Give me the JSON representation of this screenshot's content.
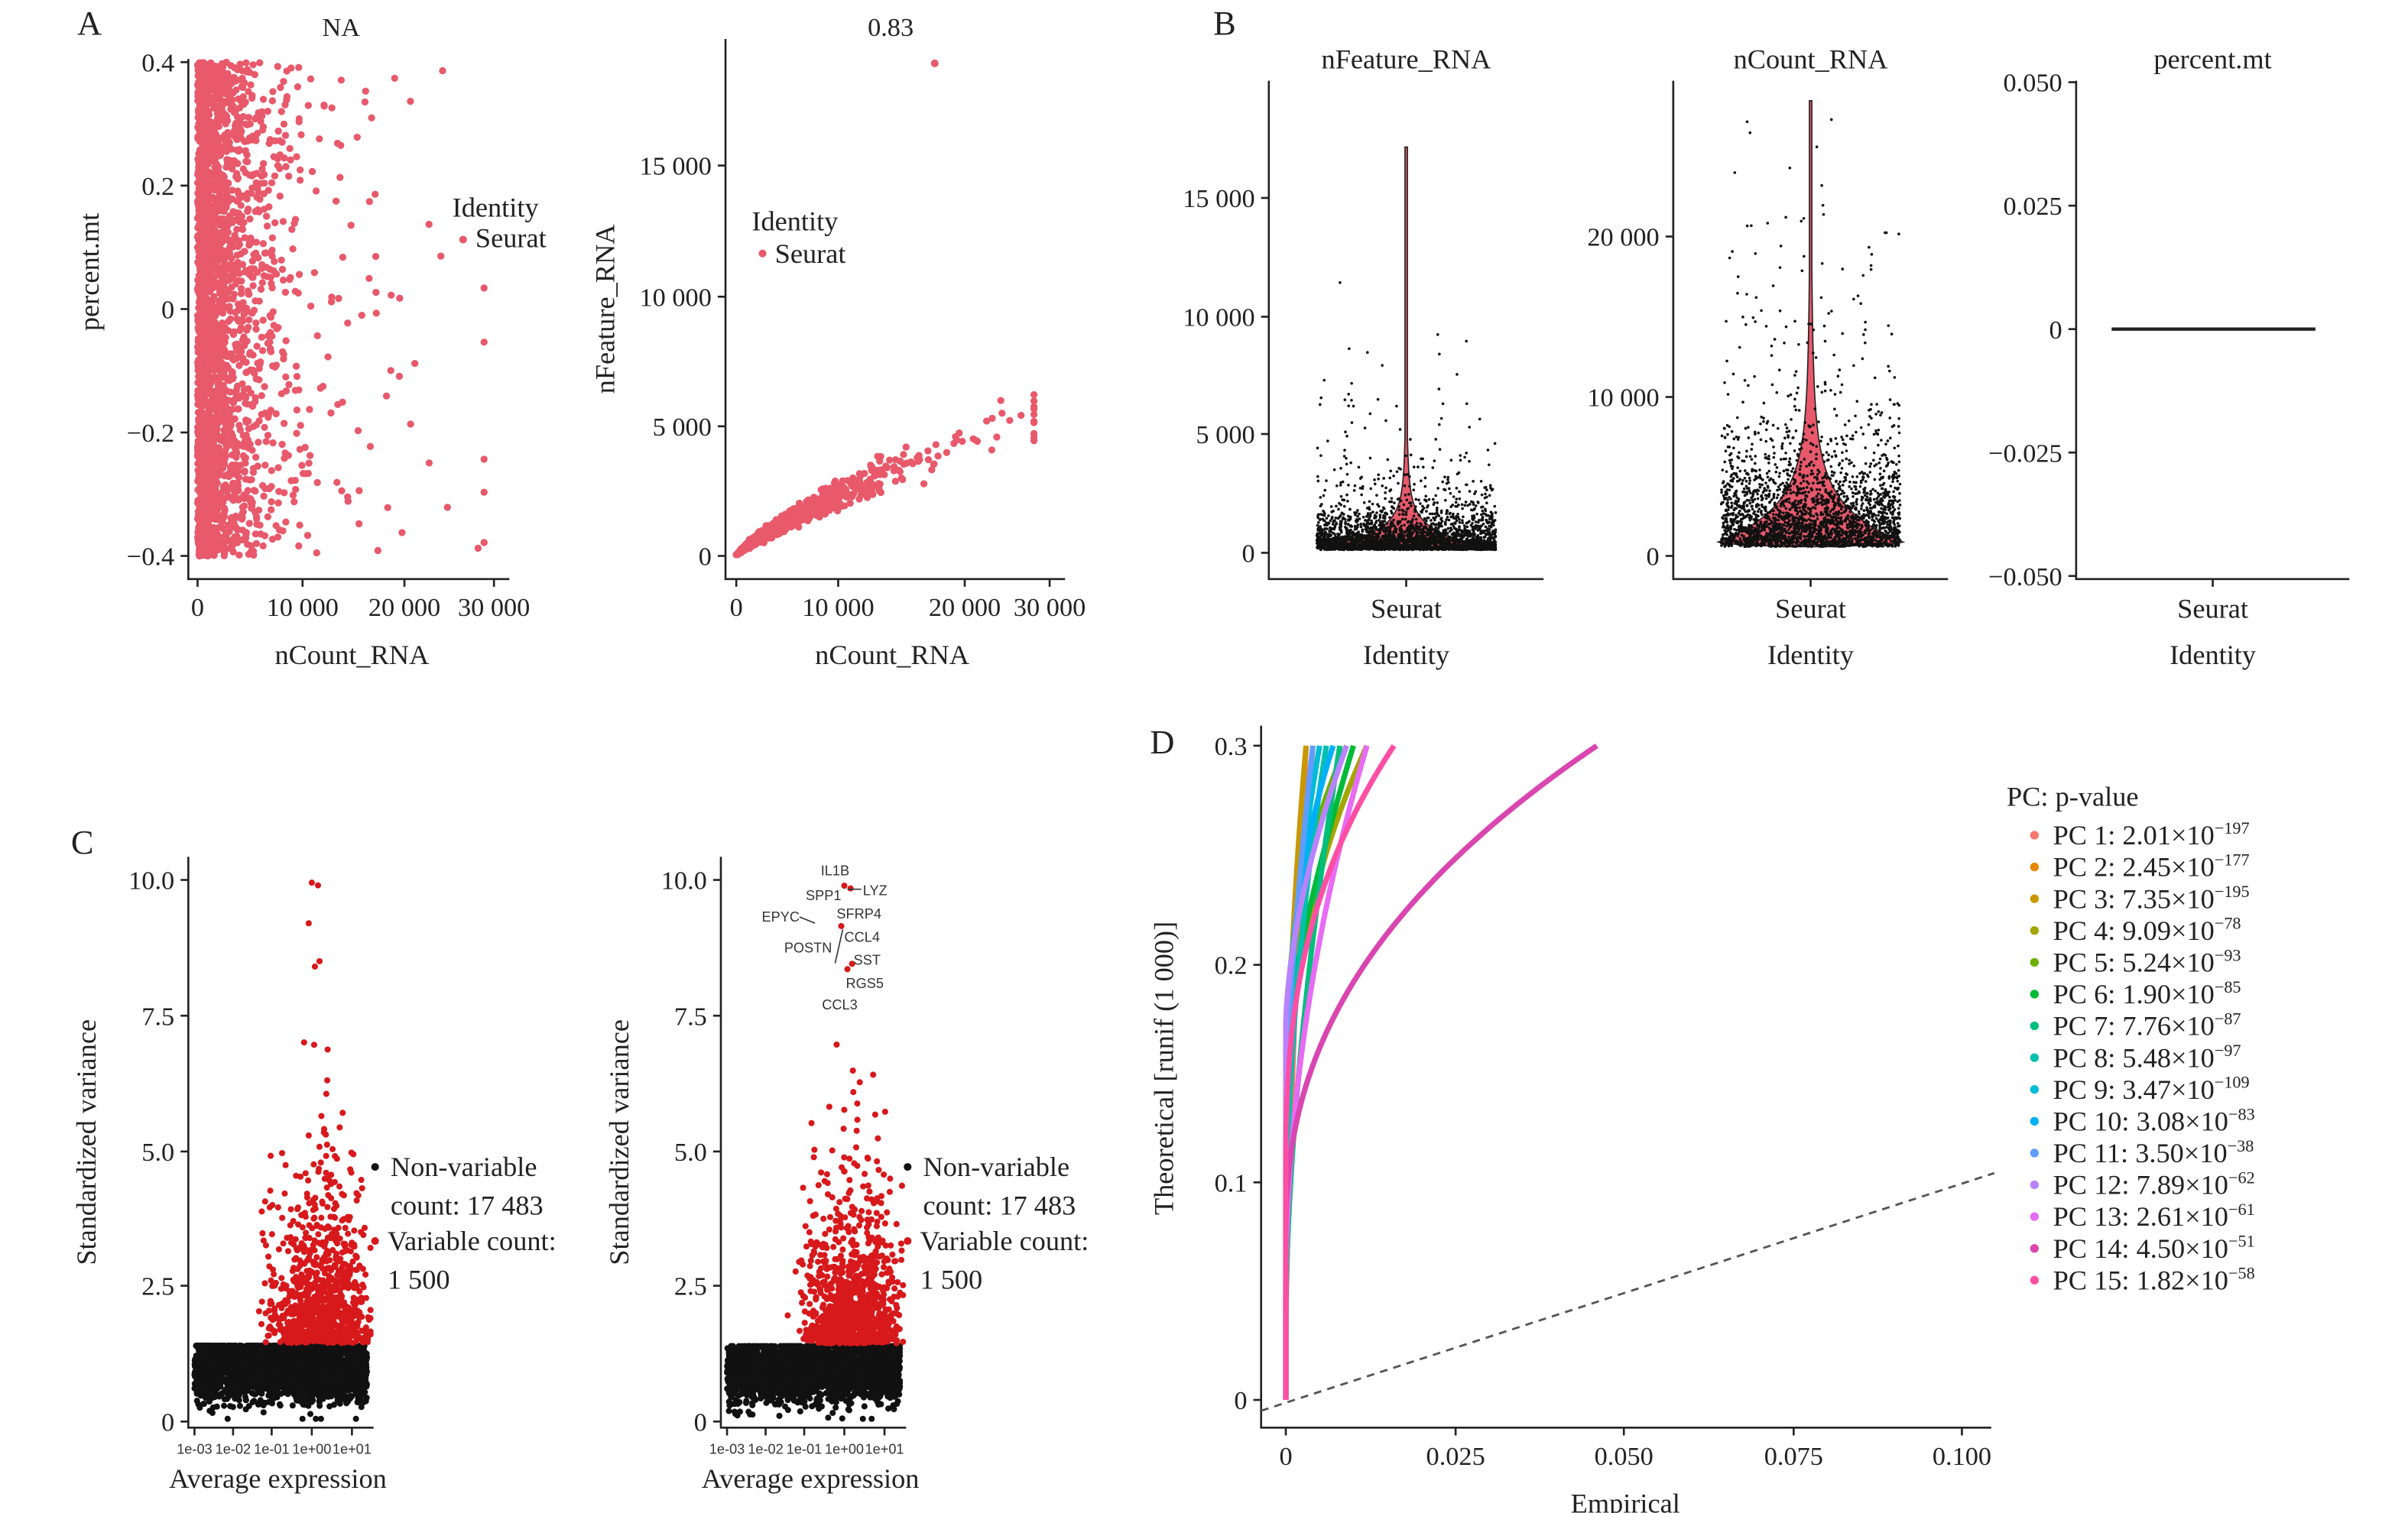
{
  "panels": {
    "a": "A",
    "b": "B",
    "c": "C",
    "d": "D"
  },
  "chart_data": [
    {
      "type": "scatter",
      "title": "NA",
      "xlabel": "nCount_RNA",
      "ylabel": "percent.mt",
      "xlim": [
        0,
        30000
      ],
      "ylim": [
        -0.4,
        0.4
      ],
      "xticks": [
        "0",
        "10 000",
        "20 000",
        "30 000"
      ],
      "yticks": [
        "−0.4",
        "−0.2",
        "0",
        "0.2",
        "0.4"
      ],
      "legend": {
        "title": "Identity",
        "items": [
          "Seurat"
        ],
        "placement": "right"
      },
      "color": "#E8596B"
    },
    {
      "type": "scatter",
      "title": "0.83",
      "xlabel": "nCount_RNA",
      "ylabel": "nFeature_RNA",
      "xlim": [
        0,
        30000
      ],
      "ylim": [
        0,
        19000
      ],
      "xticks": [
        "0",
        "10 000",
        "20 000",
        "30 000"
      ],
      "yticks": [
        "0",
        "5 000",
        "10 000",
        "15 000"
      ],
      "legend": {
        "title": "Identity",
        "items": [
          "Seurat"
        ],
        "placement": "top-left"
      },
      "color": "#E8596B"
    },
    {
      "type": "violin",
      "title": "nFeature_RNA",
      "xlabel": "Identity",
      "categories": [
        "Seurat"
      ],
      "ylim": [
        0,
        19000
      ],
      "yticks": [
        "0",
        "5 000",
        "10 000",
        "15 000"
      ],
      "color": "#E8596B"
    },
    {
      "type": "violin",
      "title": "nCount_RNA",
      "xlabel": "Identity",
      "categories": [
        "Seurat"
      ],
      "ylim": [
        0,
        29000
      ],
      "yticks": [
        "0",
        "10 000",
        "20 000"
      ],
      "color": "#E8596B"
    },
    {
      "type": "violin",
      "title": "percent.mt",
      "xlabel": "Identity",
      "categories": [
        "Seurat"
      ],
      "ylim": [
        -0.05,
        0.05
      ],
      "yticks": [
        "−0.050",
        "−0.025",
        "0",
        "0.025",
        "0.050"
      ],
      "color": "#E8596B"
    },
    {
      "type": "scatter",
      "xlabel": "Average expression",
      "ylabel": "Standardized variance",
      "xscale": "log",
      "xticks": [
        "1e-03",
        "1e-02",
        "1e-01",
        "1e+00",
        "1e+01"
      ],
      "yticks": [
        "0",
        "2.5",
        "5.0",
        "7.5",
        "10.0"
      ],
      "ylim": [
        0,
        10
      ],
      "legend": {
        "items": [
          {
            "label": "Non-variable",
            "label2": "count: 17 483",
            "color": "#111111"
          },
          {
            "label": "Variable count:",
            "label2": "1 500",
            "color": "#D7191C"
          }
        ],
        "placement": "right"
      }
    },
    {
      "type": "scatter",
      "xlabel": "Average expression",
      "ylabel": "Standardized variance",
      "xscale": "log",
      "xticks": [
        "1e-03",
        "1e-02",
        "1e-01",
        "1e+00",
        "1e+01"
      ],
      "yticks": [
        "0",
        "2.5",
        "5.0",
        "7.5",
        "10.0"
      ],
      "ylim": [
        0,
        10
      ],
      "annotations": [
        "IL1B",
        "LYZ",
        "SPP1",
        "SFRP4",
        "EPYC",
        "CCL4",
        "POSTN",
        "SST",
        "RGS5",
        "CCL3"
      ],
      "legend": {
        "items": [
          {
            "label": "Non-variable",
            "label2": "count: 17 483",
            "color": "#111111"
          },
          {
            "label": "Variable count:",
            "label2": "1 500",
            "color": "#D7191C"
          }
        ],
        "placement": "right"
      }
    },
    {
      "type": "line",
      "xlabel": "Empirical",
      "ylabel": "Theoretical [runif (1 000)]",
      "xlim": [
        0,
        0.1
      ],
      "ylim": [
        0,
        0.3
      ],
      "xticks": [
        "0",
        "0.025",
        "0.050",
        "0.075",
        "0.100"
      ],
      "yticks": [
        "0",
        "0.1",
        "0.2",
        "0.3"
      ],
      "legend": {
        "title": "PC: p-value",
        "placement": "right"
      },
      "series": [
        {
          "name": "PC 1",
          "mant": "2.01",
          "exp": "−197",
          "color": "#F8766D",
          "max_empirical": 0.003
        },
        {
          "name": "PC 2",
          "mant": "2.45",
          "exp": "−177",
          "color": "#E58700",
          "max_empirical": 0.004
        },
        {
          "name": "PC 3",
          "mant": "7.35",
          "exp": "−195",
          "color": "#C99800",
          "max_empirical": 0.003
        },
        {
          "name": "PC 4",
          "mant": "9.09",
          "exp": "−78",
          "color": "#A3A500",
          "max_empirical": 0.012
        },
        {
          "name": "PC 5",
          "mant": "5.24",
          "exp": "−93",
          "color": "#6BB100",
          "max_empirical": 0.009
        },
        {
          "name": "PC 6",
          "mant": "1.90",
          "exp": "−85",
          "color": "#00BA38",
          "max_empirical": 0.01
        },
        {
          "name": "PC 7",
          "mant": "7.76",
          "exp": "−87",
          "color": "#00BF7D",
          "max_empirical": 0.008
        },
        {
          "name": "PC 8",
          "mant": "5.48",
          "exp": "−97",
          "color": "#00C0AF",
          "max_empirical": 0.006
        },
        {
          "name": "PC 9",
          "mant": "3.47",
          "exp": "−109",
          "color": "#00BCD8",
          "max_empirical": 0.005
        },
        {
          "name": "PC 10",
          "mant": "3.08",
          "exp": "−83",
          "color": "#00B0F6",
          "max_empirical": 0.007
        },
        {
          "name": "PC 11",
          "mant": "3.50",
          "exp": "−38",
          "color": "#619CFF",
          "max_empirical": 0.004
        },
        {
          "name": "PC 12",
          "mant": "7.89",
          "exp": "−62",
          "color": "#B983FF",
          "max_empirical": 0.009
        },
        {
          "name": "PC 13",
          "mant": "2.61",
          "exp": "−61",
          "color": "#E76BF3",
          "max_empirical": 0.012
        },
        {
          "name": "PC 14",
          "mant": "4.50",
          "exp": "−51",
          "color": "#D946B0",
          "max_empirical": 0.046
        },
        {
          "name": "PC 15",
          "mant": "1.82",
          "exp": "−58",
          "color": "#FF4FA4",
          "max_empirical": 0.016
        }
      ]
    }
  ]
}
